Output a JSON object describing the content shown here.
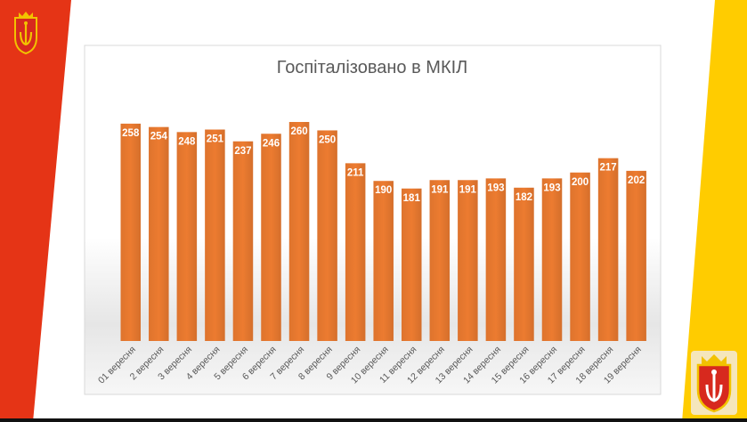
{
  "slide": {
    "colors": {
      "left_stripe": "#e53416",
      "right_stripe": "#ffcc00",
      "background": "#ffffff",
      "bottom_band": "#111111"
    },
    "logo_icon": "odesa-coat-of-arms-icon"
  },
  "chart_data": {
    "type": "bar",
    "title": "Госпіталізовано в МКІЛ",
    "xlabel": "",
    "ylabel": "",
    "categories": [
      "01 вересня",
      "2 вересня",
      "3 вересня",
      "4 вересня",
      "5 вересня",
      "6 вересня",
      "7 вересня",
      "8 вересня",
      "9 вересня",
      "10 вересня",
      "11 вересня",
      "12 вересня",
      "13 вересня",
      "14 вересня",
      "15 вересня",
      "16 вересня",
      "17 вересня",
      "18 вересня",
      "19 вересня"
    ],
    "values": [
      258,
      254,
      248,
      251,
      237,
      246,
      260,
      250,
      211,
      190,
      181,
      191,
      191,
      193,
      182,
      193,
      200,
      217,
      202
    ],
    "ylim": [
      0,
      260
    ],
    "grid": false,
    "legend": "none",
    "data_labels": true,
    "bar_color": "#ec7b30",
    "label_color": "#ffffff"
  }
}
